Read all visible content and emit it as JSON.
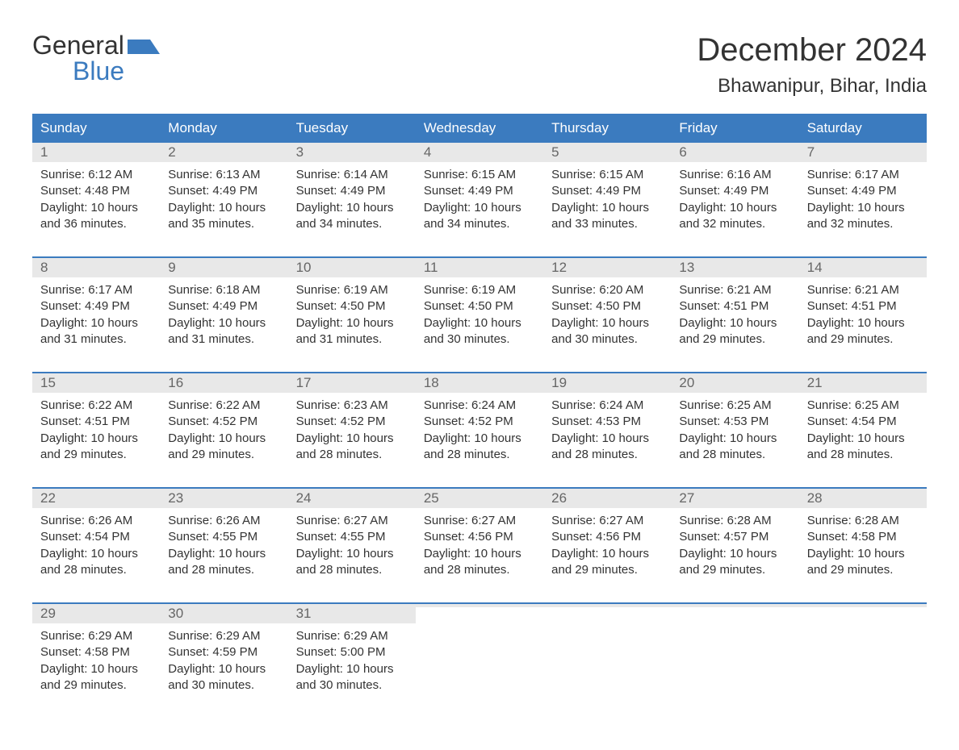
{
  "logo": {
    "text_part1": "General",
    "text_part2": "Blue",
    "color_dark": "#333333",
    "color_blue": "#3b7bbf"
  },
  "title": "December 2024",
  "location": "Bhawanipur, Bihar, India",
  "colors": {
    "header_bg": "#3b7bbf",
    "header_text": "#ffffff",
    "day_number_bg": "#e8e8e8",
    "day_number_text": "#666666",
    "body_text": "#333333",
    "week_border": "#3b7bbf",
    "page_bg": "#ffffff"
  },
  "typography": {
    "month_title_fontsize": 40,
    "location_fontsize": 24,
    "day_header_fontsize": 17,
    "day_number_fontsize": 17,
    "body_fontsize": 15,
    "logo_fontsize": 32
  },
  "day_headers": [
    "Sunday",
    "Monday",
    "Tuesday",
    "Wednesday",
    "Thursday",
    "Friday",
    "Saturday"
  ],
  "weeks": [
    [
      {
        "day": "1",
        "sunrise": "Sunrise: 6:12 AM",
        "sunset": "Sunset: 4:48 PM",
        "daylight1": "Daylight: 10 hours",
        "daylight2": "and 36 minutes."
      },
      {
        "day": "2",
        "sunrise": "Sunrise: 6:13 AM",
        "sunset": "Sunset: 4:49 PM",
        "daylight1": "Daylight: 10 hours",
        "daylight2": "and 35 minutes."
      },
      {
        "day": "3",
        "sunrise": "Sunrise: 6:14 AM",
        "sunset": "Sunset: 4:49 PM",
        "daylight1": "Daylight: 10 hours",
        "daylight2": "and 34 minutes."
      },
      {
        "day": "4",
        "sunrise": "Sunrise: 6:15 AM",
        "sunset": "Sunset: 4:49 PM",
        "daylight1": "Daylight: 10 hours",
        "daylight2": "and 34 minutes."
      },
      {
        "day": "5",
        "sunrise": "Sunrise: 6:15 AM",
        "sunset": "Sunset: 4:49 PM",
        "daylight1": "Daylight: 10 hours",
        "daylight2": "and 33 minutes."
      },
      {
        "day": "6",
        "sunrise": "Sunrise: 6:16 AM",
        "sunset": "Sunset: 4:49 PM",
        "daylight1": "Daylight: 10 hours",
        "daylight2": "and 32 minutes."
      },
      {
        "day": "7",
        "sunrise": "Sunrise: 6:17 AM",
        "sunset": "Sunset: 4:49 PM",
        "daylight1": "Daylight: 10 hours",
        "daylight2": "and 32 minutes."
      }
    ],
    [
      {
        "day": "8",
        "sunrise": "Sunrise: 6:17 AM",
        "sunset": "Sunset: 4:49 PM",
        "daylight1": "Daylight: 10 hours",
        "daylight2": "and 31 minutes."
      },
      {
        "day": "9",
        "sunrise": "Sunrise: 6:18 AM",
        "sunset": "Sunset: 4:49 PM",
        "daylight1": "Daylight: 10 hours",
        "daylight2": "and 31 minutes."
      },
      {
        "day": "10",
        "sunrise": "Sunrise: 6:19 AM",
        "sunset": "Sunset: 4:50 PM",
        "daylight1": "Daylight: 10 hours",
        "daylight2": "and 31 minutes."
      },
      {
        "day": "11",
        "sunrise": "Sunrise: 6:19 AM",
        "sunset": "Sunset: 4:50 PM",
        "daylight1": "Daylight: 10 hours",
        "daylight2": "and 30 minutes."
      },
      {
        "day": "12",
        "sunrise": "Sunrise: 6:20 AM",
        "sunset": "Sunset: 4:50 PM",
        "daylight1": "Daylight: 10 hours",
        "daylight2": "and 30 minutes."
      },
      {
        "day": "13",
        "sunrise": "Sunrise: 6:21 AM",
        "sunset": "Sunset: 4:51 PM",
        "daylight1": "Daylight: 10 hours",
        "daylight2": "and 29 minutes."
      },
      {
        "day": "14",
        "sunrise": "Sunrise: 6:21 AM",
        "sunset": "Sunset: 4:51 PM",
        "daylight1": "Daylight: 10 hours",
        "daylight2": "and 29 minutes."
      }
    ],
    [
      {
        "day": "15",
        "sunrise": "Sunrise: 6:22 AM",
        "sunset": "Sunset: 4:51 PM",
        "daylight1": "Daylight: 10 hours",
        "daylight2": "and 29 minutes."
      },
      {
        "day": "16",
        "sunrise": "Sunrise: 6:22 AM",
        "sunset": "Sunset: 4:52 PM",
        "daylight1": "Daylight: 10 hours",
        "daylight2": "and 29 minutes."
      },
      {
        "day": "17",
        "sunrise": "Sunrise: 6:23 AM",
        "sunset": "Sunset: 4:52 PM",
        "daylight1": "Daylight: 10 hours",
        "daylight2": "and 28 minutes."
      },
      {
        "day": "18",
        "sunrise": "Sunrise: 6:24 AM",
        "sunset": "Sunset: 4:52 PM",
        "daylight1": "Daylight: 10 hours",
        "daylight2": "and 28 minutes."
      },
      {
        "day": "19",
        "sunrise": "Sunrise: 6:24 AM",
        "sunset": "Sunset: 4:53 PM",
        "daylight1": "Daylight: 10 hours",
        "daylight2": "and 28 minutes."
      },
      {
        "day": "20",
        "sunrise": "Sunrise: 6:25 AM",
        "sunset": "Sunset: 4:53 PM",
        "daylight1": "Daylight: 10 hours",
        "daylight2": "and 28 minutes."
      },
      {
        "day": "21",
        "sunrise": "Sunrise: 6:25 AM",
        "sunset": "Sunset: 4:54 PM",
        "daylight1": "Daylight: 10 hours",
        "daylight2": "and 28 minutes."
      }
    ],
    [
      {
        "day": "22",
        "sunrise": "Sunrise: 6:26 AM",
        "sunset": "Sunset: 4:54 PM",
        "daylight1": "Daylight: 10 hours",
        "daylight2": "and 28 minutes."
      },
      {
        "day": "23",
        "sunrise": "Sunrise: 6:26 AM",
        "sunset": "Sunset: 4:55 PM",
        "daylight1": "Daylight: 10 hours",
        "daylight2": "and 28 minutes."
      },
      {
        "day": "24",
        "sunrise": "Sunrise: 6:27 AM",
        "sunset": "Sunset: 4:55 PM",
        "daylight1": "Daylight: 10 hours",
        "daylight2": "and 28 minutes."
      },
      {
        "day": "25",
        "sunrise": "Sunrise: 6:27 AM",
        "sunset": "Sunset: 4:56 PM",
        "daylight1": "Daylight: 10 hours",
        "daylight2": "and 28 minutes."
      },
      {
        "day": "26",
        "sunrise": "Sunrise: 6:27 AM",
        "sunset": "Sunset: 4:56 PM",
        "daylight1": "Daylight: 10 hours",
        "daylight2": "and 29 minutes."
      },
      {
        "day": "27",
        "sunrise": "Sunrise: 6:28 AM",
        "sunset": "Sunset: 4:57 PM",
        "daylight1": "Daylight: 10 hours",
        "daylight2": "and 29 minutes."
      },
      {
        "day": "28",
        "sunrise": "Sunrise: 6:28 AM",
        "sunset": "Sunset: 4:58 PM",
        "daylight1": "Daylight: 10 hours",
        "daylight2": "and 29 minutes."
      }
    ],
    [
      {
        "day": "29",
        "sunrise": "Sunrise: 6:29 AM",
        "sunset": "Sunset: 4:58 PM",
        "daylight1": "Daylight: 10 hours",
        "daylight2": "and 29 minutes."
      },
      {
        "day": "30",
        "sunrise": "Sunrise: 6:29 AM",
        "sunset": "Sunset: 4:59 PM",
        "daylight1": "Daylight: 10 hours",
        "daylight2": "and 30 minutes."
      },
      {
        "day": "31",
        "sunrise": "Sunrise: 6:29 AM",
        "sunset": "Sunset: 5:00 PM",
        "daylight1": "Daylight: 10 hours",
        "daylight2": "and 30 minutes."
      },
      {
        "empty": true
      },
      {
        "empty": true
      },
      {
        "empty": true
      },
      {
        "empty": true
      }
    ]
  ]
}
